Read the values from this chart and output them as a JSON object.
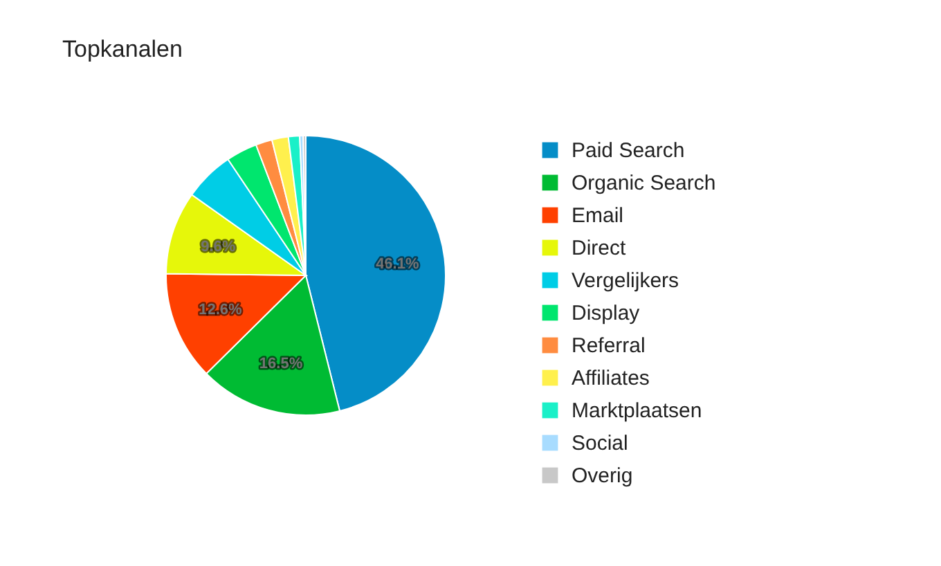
{
  "chart_data": {
    "type": "pie",
    "title": "Topkanalen",
    "categories": [
      "Paid Search",
      "Organic Search",
      "Email",
      "Direct",
      "Vergelijkers",
      "Display",
      "Referral",
      "Affiliates",
      "Marktplaatsen",
      "Social",
      "Overig"
    ],
    "values": [
      46.1,
      16.5,
      12.6,
      9.6,
      5.8,
      3.6,
      1.9,
      1.9,
      1.3,
      0.4,
      0.3
    ],
    "colors": [
      "#058dc7",
      "#00bb33",
      "#ff4000",
      "#e6f70a",
      "#00cde6",
      "#00e66e",
      "#ff8c40",
      "#fff04d",
      "#1af0c8",
      "#a8dcff",
      "#c8c8c8"
    ],
    "value_labels": [
      "46.1%",
      "16.5%",
      "12.6%",
      "9.6%",
      null,
      null,
      null,
      null,
      null,
      null,
      null
    ],
    "legend": "right"
  }
}
